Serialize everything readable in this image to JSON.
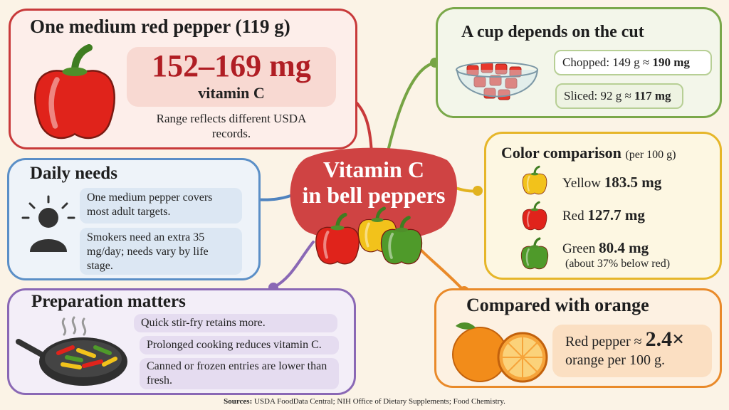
{
  "center": {
    "lines": [
      "Vitamin C",
      "in bell peppers"
    ]
  },
  "red_pepper": {
    "title": "One medium red pepper (119 g)",
    "amount": "152–169 mg",
    "unit": "vitamin C",
    "note": "Range reflects different USDA records."
  },
  "cup": {
    "title": "A cup depends on the cut",
    "rows": [
      {
        "label": "Chopped: 149 g ≈",
        "value": "190 mg"
      },
      {
        "label": "Sliced: 92 g ≈",
        "value": "117 mg"
      }
    ]
  },
  "daily": {
    "title": "Daily needs",
    "items": [
      "One medium pepper covers most adult targets.",
      "Smokers need an extra 35 mg/day; needs vary by life stage."
    ]
  },
  "color": {
    "title": "Color comparison",
    "qualifier": "(per 100 g)",
    "rows": [
      {
        "name": "Yellow",
        "value": "183.5 mg"
      },
      {
        "name": "Red",
        "value": "127.7 mg"
      },
      {
        "name": "Green",
        "value": "80.4 mg",
        "note": "(about 37% below red)"
      }
    ]
  },
  "prep": {
    "title": "Preparation matters",
    "items": [
      "Quick stir-fry retains more.",
      "Prolonged cooking reduces vitamin C.",
      "Canned or frozen entries are lower than fresh."
    ]
  },
  "orange": {
    "title": "Compared with orange",
    "label": "Red pepper ≈",
    "ratio": "2.4×",
    "rest": "orange per 100 g."
  },
  "sources": {
    "label": "Sources:",
    "text": "USDA FoodData Central; NIH Office of Dietary Supplements; Food Chemistry."
  }
}
